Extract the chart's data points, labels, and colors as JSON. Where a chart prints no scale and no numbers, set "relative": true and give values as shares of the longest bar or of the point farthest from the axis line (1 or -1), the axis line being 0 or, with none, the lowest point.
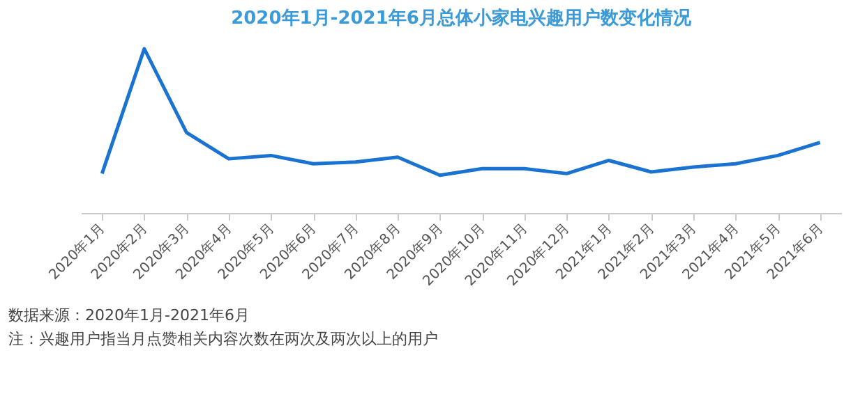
{
  "chart_data": {
    "type": "line",
    "title": "2020年1月-2021年6月总体小家电兴趣用户数变化情况",
    "relative": true,
    "categories": [
      "2020年1月",
      "2020年2月",
      "2020年3月",
      "2020年4月",
      "2020年5月",
      "2020年6月",
      "2020年7月",
      "2020年8月",
      "2020年9月",
      "2020年10月",
      "2020年11月",
      "2020年12月",
      "2021年1月",
      "2021年2月",
      "2021年3月",
      "2021年4月",
      "2021年5月",
      "2021年6月"
    ],
    "series": [
      {
        "color": "#1a73d1",
        "values": [
          0.24,
          1,
          0.49,
          0.33,
          0.35,
          0.3,
          0.31,
          0.34,
          0.23,
          0.27,
          0.27,
          0.24,
          0.32,
          0.25,
          0.28,
          0.3,
          0.35,
          0.43
        ]
      }
    ],
    "annotations": [
      "数据来源：2020年1月-2021年6月",
      "注：兴趣用户指当月点赞相关内容次数在两次及两次以上的用户"
    ],
    "grid": false,
    "legend": false,
    "marker": "none",
    "line_style": "solid"
  }
}
